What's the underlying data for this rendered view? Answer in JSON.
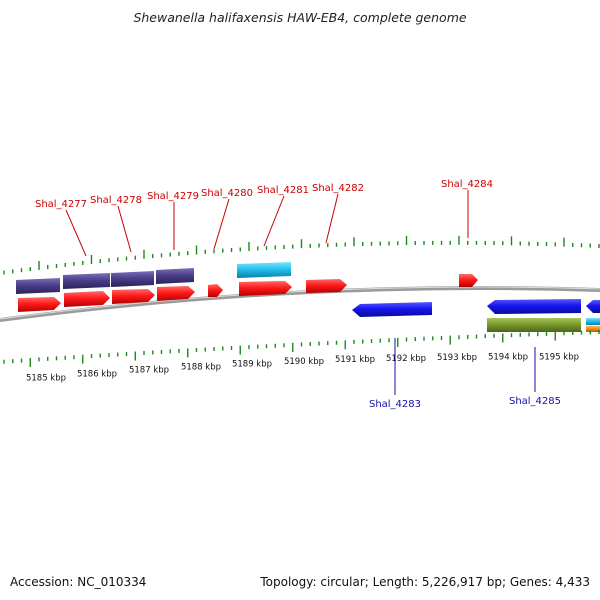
{
  "title": "Shewanella halifaxensis HAW-EB4, complete genome",
  "footer": {
    "accession": "Accession: NC_010334",
    "summary": "Topology: circular; Length: 5,226,917 bp; Genes: 4,433"
  },
  "colors": {
    "tick": "#1a8a1a",
    "forward_label": "#cc0000",
    "reverse_label": "#1010aa",
    "backbone": "#888888",
    "cds_red": "#ff1a1a",
    "cds_purple": "#4b3f8c",
    "cds_cyan": "#22c0ee",
    "cds_blue": "#1515ee",
    "cds_olive": "#7a9a30",
    "cds_orange": "#f08a1a"
  },
  "scale_labels": [
    "5185 kbp",
    "5186 kbp",
    "5187 kbp",
    "5188 kbp",
    "5189 kbp",
    "5190 kbp",
    "5191 kbp",
    "5192 kbp",
    "5193 kbp",
    "5194 kbp",
    "5195 kbp"
  ],
  "forward_gene_labels": [
    "Shal_4277",
    "Shal_4278",
    "Shal_4279",
    "Shal_4280",
    "Shal_4281",
    "Shal_4282",
    "Shal_4284"
  ],
  "reverse_gene_labels": [
    "Shal_4283",
    "Shal_4285"
  ]
}
